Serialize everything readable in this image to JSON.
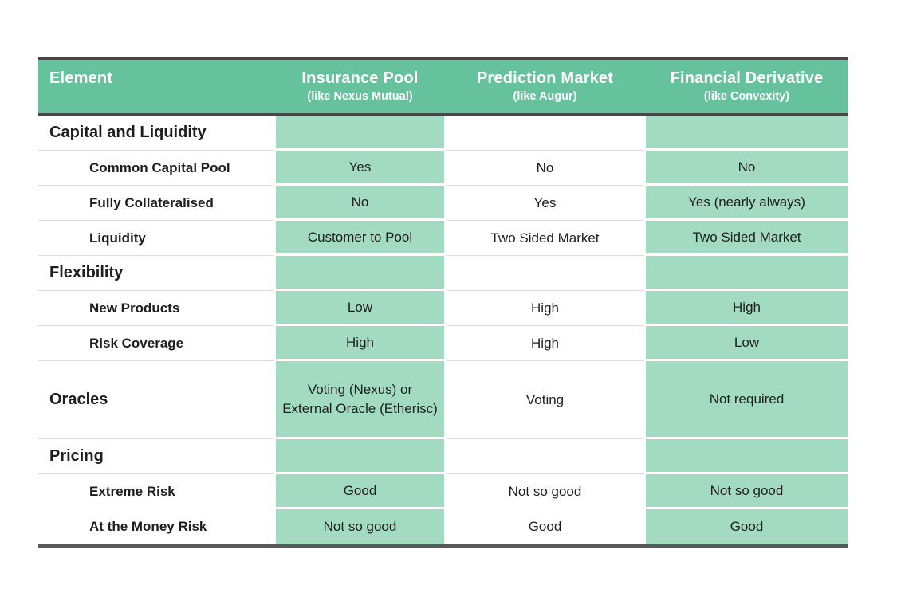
{
  "colors": {
    "header_green": "#66c29c",
    "cell_green": "#a3dbc2",
    "dark_line": "#474747",
    "bottom_line": "#595959",
    "row_line": "#dcdcdc",
    "text_dark": "#1f1f1f",
    "header_text": "#ffffff"
  },
  "chart_data": {
    "type": "table",
    "header": {
      "element_label": "Element",
      "columns": [
        {
          "title": "Insurance Pool",
          "subtitle": "(like Nexus Mutual)"
        },
        {
          "title": "Prediction Market",
          "subtitle": "(like Augur)"
        },
        {
          "title": "Financial Derivative",
          "subtitle": "(like Convexity)"
        }
      ]
    },
    "rows": [
      {
        "type": "section",
        "label": "Capital and Liquidity",
        "values": [
          "",
          "",
          ""
        ]
      },
      {
        "type": "sub",
        "label": "Common Capital Pool",
        "values": [
          "Yes",
          "No",
          "No"
        ]
      },
      {
        "type": "sub",
        "label": "Fully Collateralised",
        "values": [
          "No",
          "Yes",
          "Yes (nearly always)"
        ]
      },
      {
        "type": "sub",
        "label": "Liquidity",
        "values": [
          "Customer to Pool",
          "Two Sided Market",
          "Two Sided Market"
        ]
      },
      {
        "type": "section",
        "label": "Flexibility",
        "values": [
          "",
          "",
          ""
        ]
      },
      {
        "type": "sub",
        "label": "New Products",
        "values": [
          "Low",
          "High",
          "High"
        ]
      },
      {
        "type": "sub",
        "label": "Risk Coverage",
        "values": [
          "High",
          "High",
          "Low"
        ]
      },
      {
        "type": "section",
        "label": "Oracles",
        "values": [
          "Voting (Nexus) or External Oracle (Etherisc)",
          "Voting",
          "Not required"
        ]
      },
      {
        "type": "section",
        "label": "Pricing",
        "values": [
          "",
          "",
          ""
        ]
      },
      {
        "type": "sub",
        "label": "Extreme Risk",
        "values": [
          "Good",
          "Not so good",
          "Not so good"
        ]
      },
      {
        "type": "sub",
        "label": "At the Money Risk",
        "values": [
          "Not so good",
          "Good",
          "Good"
        ]
      }
    ]
  }
}
